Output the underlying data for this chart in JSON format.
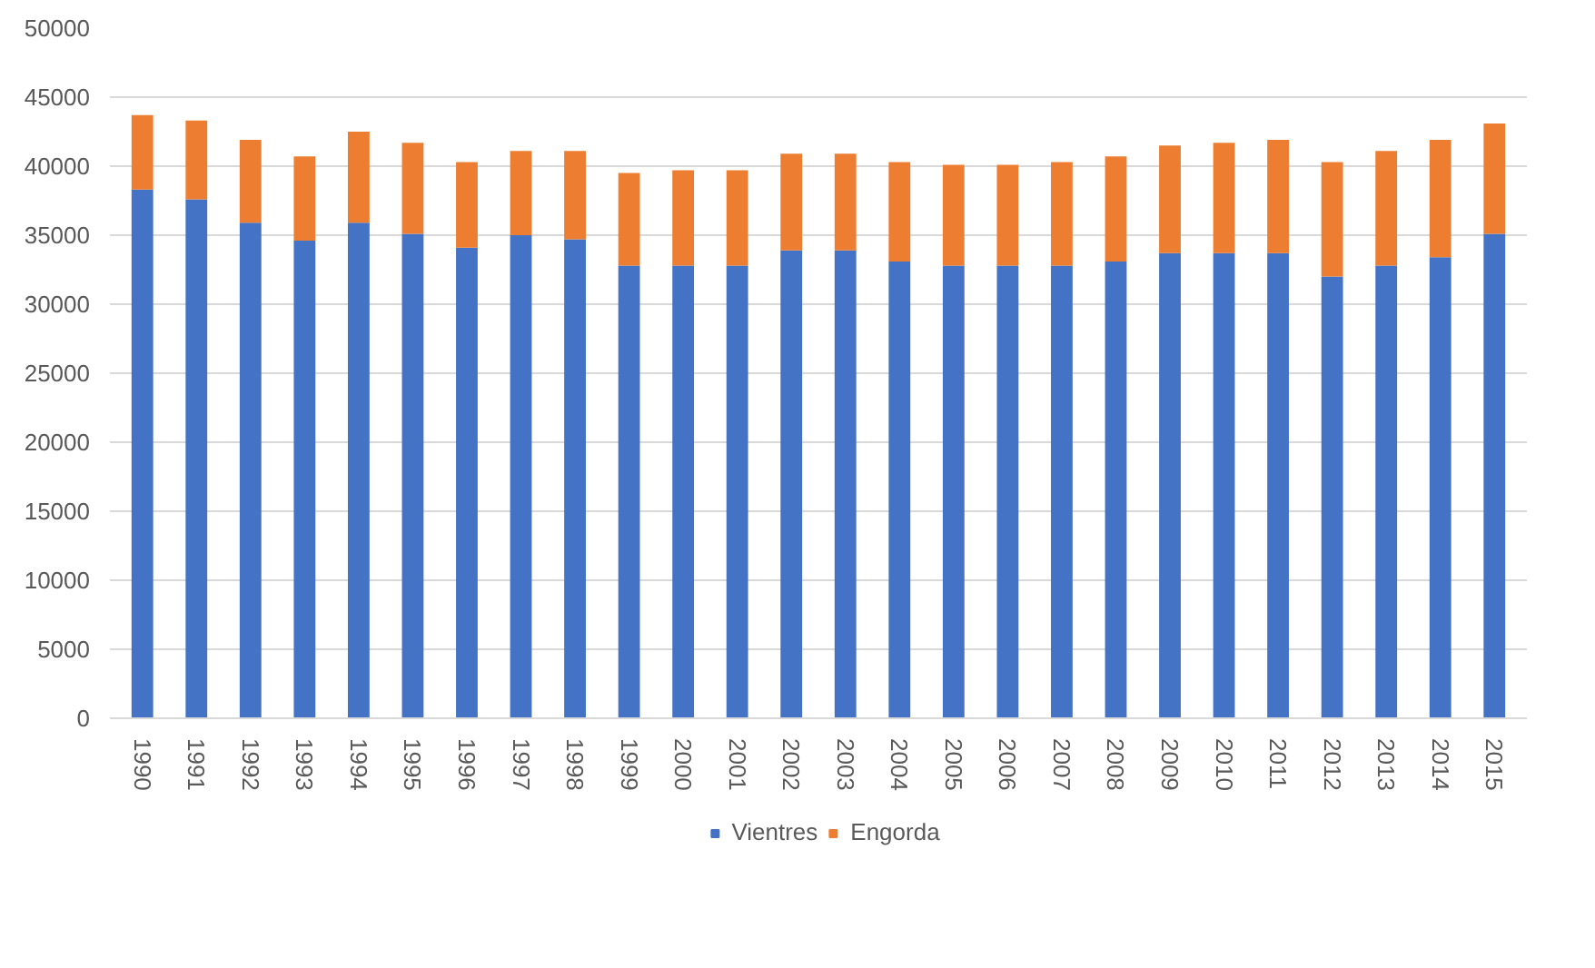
{
  "chart_data": {
    "type": "bar",
    "stacked": true,
    "categories": [
      "1990",
      "1991",
      "1992",
      "1993",
      "1994",
      "1995",
      "1996",
      "1997",
      "1998",
      "1999",
      "2000",
      "2001",
      "2002",
      "2003",
      "2004",
      "2005",
      "2006",
      "2007",
      "2008",
      "2009",
      "2010",
      "2011",
      "2012",
      "2013",
      "2014",
      "2015"
    ],
    "series": [
      {
        "name": "Vientres",
        "color": "#4472c4",
        "values": [
          38300,
          37600,
          35900,
          34600,
          35900,
          35100,
          34100,
          35000,
          34700,
          32800,
          32800,
          32800,
          33900,
          33900,
          33100,
          32800,
          32800,
          32800,
          33100,
          33700,
          33700,
          33700,
          32000,
          32800,
          33400,
          35100
        ]
      },
      {
        "name": "Engorda",
        "color": "#ed7d31",
        "values": [
          5400,
          5700,
          6000,
          6100,
          6600,
          6600,
          6200,
          6100,
          6400,
          6700,
          6900,
          6900,
          7000,
          7000,
          7200,
          7300,
          7300,
          7500,
          7600,
          7800,
          8000,
          8200,
          8300,
          8300,
          8500,
          8000
        ]
      }
    ],
    "ylim": [
      0,
      50000
    ],
    "yticks": [
      0,
      5000,
      10000,
      15000,
      20000,
      25000,
      30000,
      35000,
      40000,
      45000,
      50000
    ],
    "grid": "y",
    "legend": "bottom"
  }
}
